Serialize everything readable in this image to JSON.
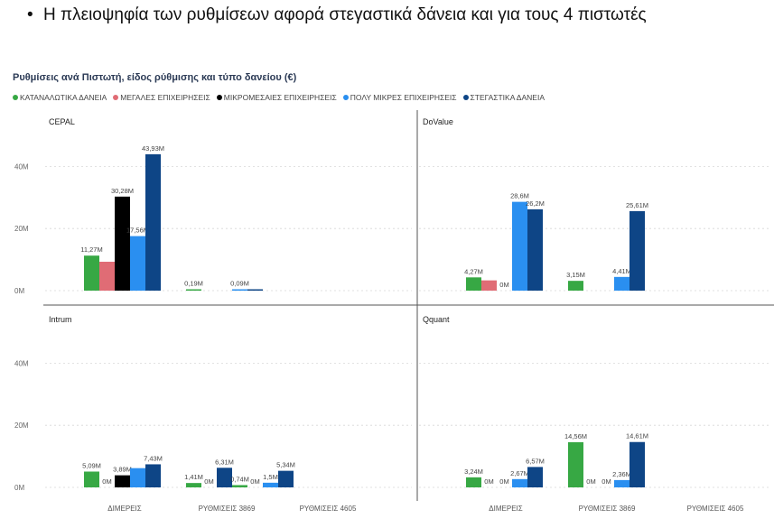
{
  "bullet": {
    "symbol": "•",
    "text": "Η πλειοψηφία των ρυθμίσεων αφορά στεγαστικά δάνεια και για τους 4 πιστωτές"
  },
  "chart_data": {
    "type": "bar",
    "title": "Ρυθμίσεις ανά Πιστωτή, είδος ρύθμισης και τύπο δανείου (€)",
    "categories": [
      "ΔΙΜΕΡΕΙΣ",
      "ΡΥΘΜΙΣΕΙΣ 3869",
      "ΡΥΘΜΙΣΕΙΣ 4605"
    ],
    "ylim": [
      0,
      45
    ],
    "yticks": [
      "0M",
      "20M",
      "40M"
    ],
    "ytick_values": [
      0,
      20,
      40
    ],
    "grid": true,
    "legend_position": "top-left",
    "legend": [
      {
        "name": "ΚΑΤΑΝΑΛΩΤΙΚΑ ΔΑΝΕΙΑ",
        "color": "#37a844"
      },
      {
        "name": "ΜΕΓΑΛΕΣ ΕΠΙΧΕΙΡΗΣΕΙΣ",
        "color": "#e06c75"
      },
      {
        "name": "ΜΙΚΡΟΜΕΣΑΙΕΣ ΕΠΙΧΕΙΡΗΣΕΙΣ",
        "color": "#000000"
      },
      {
        "name": "ΠΟΛΥ ΜΙΚΡΕΣ ΕΠΙΧΕΙΡΗΣΕΙΣ",
        "color": "#2a8ff0"
      },
      {
        "name": "ΣΤΕΓΑΣΤΙΚΑ ΔΑΝΕΙΑ",
        "color": "#0e4586"
      }
    ],
    "panels": [
      {
        "name": "CEPAL",
        "groups": [
          [
            {
              "s": 0,
              "v": 11.27,
              "label": "11,27M"
            },
            {
              "s": 1,
              "v": 9.3,
              "label": ""
            },
            {
              "s": 2,
              "v": 30.28,
              "label": "30,28M"
            },
            {
              "s": 3,
              "v": 17.56,
              "label": "17,56M"
            },
            {
              "s": 4,
              "v": 43.93,
              "label": "43,93M"
            }
          ],
          [
            {
              "s": 0,
              "v": 0.19,
              "label": "0,19M"
            }
          ],
          [
            {
              "s": 3,
              "v": 0.09,
              "label": "0,09M"
            },
            {
              "s": 4,
              "v": 0.2,
              "label": ""
            }
          ]
        ]
      },
      {
        "name": "DoValue",
        "groups": [
          [
            {
              "s": 0,
              "v": 4.27,
              "label": "4,27M"
            },
            {
              "s": 1,
              "v": 3.3,
              "label": ""
            },
            {
              "s": 2,
              "v": 0,
              "label": "0M"
            },
            {
              "s": 3,
              "v": 28.6,
              "label": "28,6M"
            },
            {
              "s": 4,
              "v": 26.2,
              "label": "26,2M"
            }
          ],
          [
            {
              "s": 0,
              "v": 3.15,
              "label": "3,15M"
            }
          ],
          [
            {
              "s": 3,
              "v": 4.41,
              "label": "4,41M"
            },
            {
              "s": 4,
              "v": 25.61,
              "label": "25,61M"
            }
          ]
        ]
      },
      {
        "name": "Intrum",
        "groups": [
          [
            {
              "s": 0,
              "v": 5.09,
              "label": "5,09M"
            },
            {
              "s": 1,
              "v": 0,
              "label": "0M"
            },
            {
              "s": 2,
              "v": 3.89,
              "label": "3,89M"
            },
            {
              "s": 3,
              "v": 6.2,
              "label": ""
            },
            {
              "s": 4,
              "v": 7.43,
              "label": "7,43M"
            }
          ],
          [
            {
              "s": 0,
              "v": 1.41,
              "label": "1,41M"
            },
            {
              "s": 3,
              "v": 0,
              "label": "0M"
            },
            {
              "s": 4,
              "v": 6.31,
              "label": "6,31M"
            }
          ],
          [
            {
              "s": 0,
              "v": 0.74,
              "label": "0,74M"
            },
            {
              "s": 3,
              "v": 0,
              "label": "0M"
            },
            {
              "s": 3,
              "v": 1.5,
              "label": "1,5M"
            },
            {
              "s": 4,
              "v": 5.34,
              "label": "5,34M"
            }
          ]
        ]
      },
      {
        "name": "Qquant",
        "groups": [
          [
            {
              "s": 0,
              "v": 3.24,
              "label": "3,24M"
            },
            {
              "s": 1,
              "v": 0,
              "label": "0M"
            },
            {
              "s": 2,
              "v": 0,
              "label": "0M"
            },
            {
              "s": 3,
              "v": 2.67,
              "label": "2,67M"
            },
            {
              "s": 4,
              "v": 6.57,
              "label": "6,57M"
            }
          ],
          [
            {
              "s": 0,
              "v": 14.56,
              "label": "14,56M"
            },
            {
              "s": 1,
              "v": 0,
              "label": "0M"
            },
            {
              "s": 3,
              "v": 0,
              "label": "0M"
            },
            {
              "s": 3,
              "v": 2.36,
              "label": "2,36M"
            },
            {
              "s": 4,
              "v": 14.61,
              "label": "14,61M"
            }
          ],
          []
        ]
      }
    ]
  }
}
